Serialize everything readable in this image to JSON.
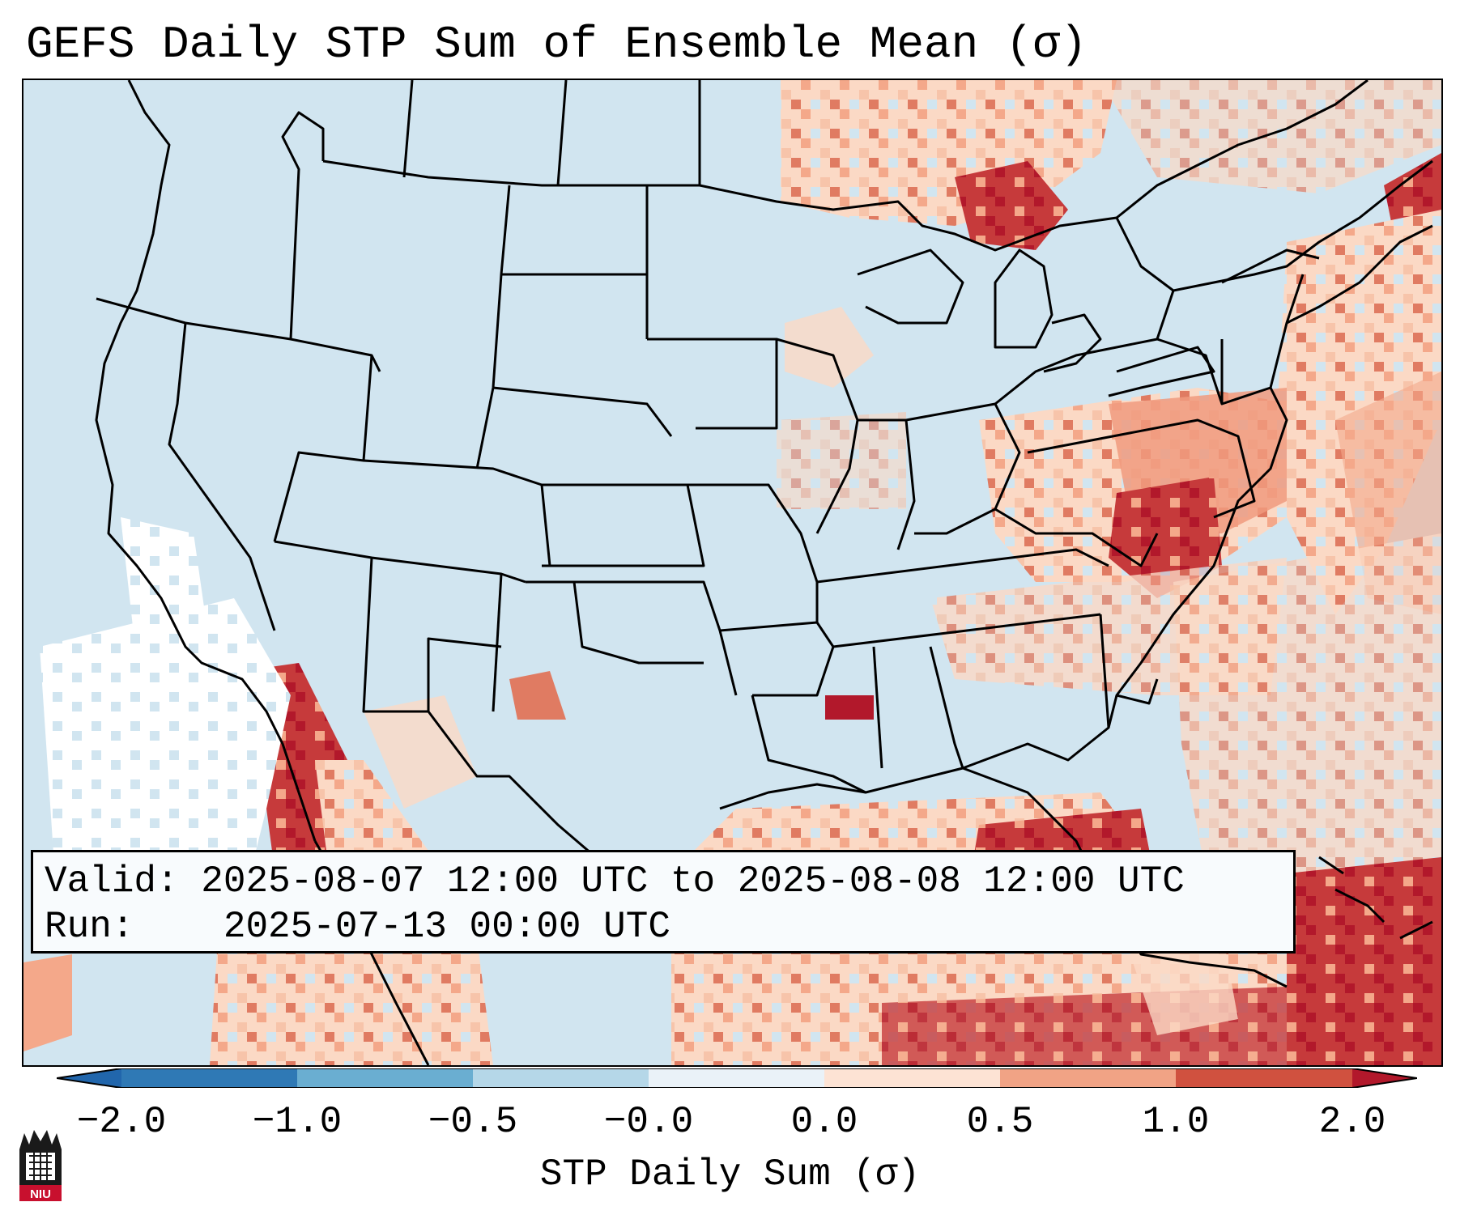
{
  "title": "GEFS Daily STP Sum of Ensemble Mean (σ)",
  "info": {
    "valid_label": "Valid:",
    "valid_value": "2025-08-07 12:00 UTC to 2025-08-08 12:00 UTC",
    "run_label": "Run:",
    "run_value": "2025-07-13 00:00 UTC"
  },
  "colorbar": {
    "label": "STP Daily Sum (σ)",
    "ticks": [
      "−2.0",
      "−1.0",
      "−0.5",
      "−0.0",
      "0.0",
      "0.5",
      "1.0",
      "2.0"
    ],
    "colors": [
      "#2f79b5",
      "#6aaed1",
      "#b5d7e8",
      "#eaf2f8",
      "#fde3d4",
      "#f1a385",
      "#d0513f",
      "#b11629"
    ],
    "under_color": "#2166ac",
    "over_color": "#b2182b"
  },
  "map": {
    "background_color": "#d1e5f0",
    "border_color": "#000000"
  },
  "logo": {
    "text": "NIU"
  }
}
